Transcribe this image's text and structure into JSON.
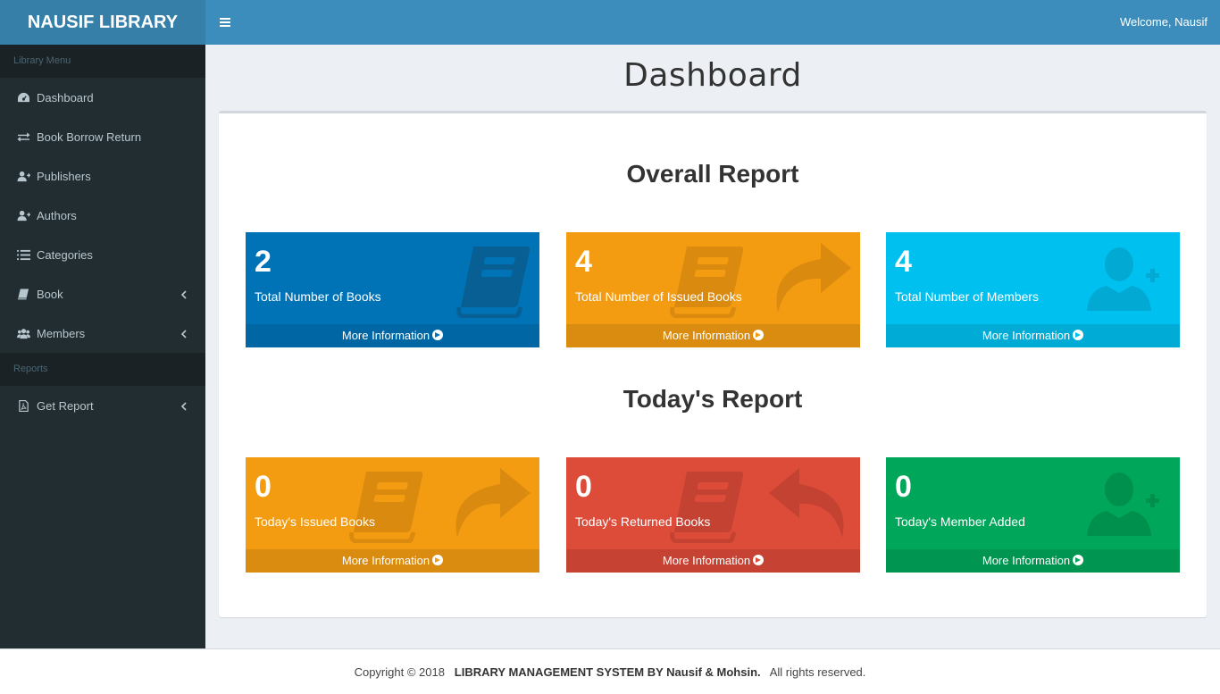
{
  "header": {
    "logo": "NAUSIF LIBRARY",
    "welcome": "Welcome, Nausif",
    "menu_toggle_icon": "bars-icon"
  },
  "sidebar": {
    "section1": "Library Menu",
    "items": [
      {
        "label": "Dashboard",
        "icon": "dashboard-icon"
      },
      {
        "label": "Book Borrow Return",
        "icon": "exchange-icon"
      },
      {
        "label": "Publishers",
        "icon": "user-plus-icon"
      },
      {
        "label": "Authors",
        "icon": "user-plus-icon"
      },
      {
        "label": "Categories",
        "icon": "list-icon"
      },
      {
        "label": "Book",
        "icon": "book-icon",
        "has_submenu": true
      },
      {
        "label": "Members",
        "icon": "users-icon",
        "has_submenu": true
      }
    ],
    "section2": "Reports",
    "report_items": [
      {
        "label": "Get Report",
        "icon": "file-pdf-icon",
        "has_submenu": true
      }
    ]
  },
  "main": {
    "title": "Dashboard",
    "overall_title": "Overall Report",
    "today_title": "Today's Report",
    "overall": [
      {
        "value": "2",
        "label": "Total Number of Books",
        "link": "More Information",
        "color": "#0073b7"
      },
      {
        "value": "4",
        "label": "Total Number of Issued Books",
        "link": "More Information",
        "color": "#f39c12"
      },
      {
        "value": "4",
        "label": "Total Number of Members",
        "link": "More Information",
        "color": "#00c0ef"
      }
    ],
    "today": [
      {
        "value": "0",
        "label": "Today's Issued Books",
        "link": "More Information",
        "color": "#f39c12"
      },
      {
        "value": "0",
        "label": "Today's Returned Books",
        "link": "More Information",
        "color": "#dd4b39"
      },
      {
        "value": "0",
        "label": "Today's Member Added",
        "link": "More Information",
        "color": "#00a65a"
      }
    ]
  },
  "footer": {
    "copyright": "Copyright © 2018",
    "brand": "LIBRARY MANAGEMENT SYSTEM BY Nausif & Mohsin.",
    "rights": "All rights reserved."
  },
  "colors": {
    "header": "#3c8dbc",
    "logo_bg": "#367fa9",
    "sidebar": "#222d32",
    "content_bg": "#ecf0f5"
  }
}
